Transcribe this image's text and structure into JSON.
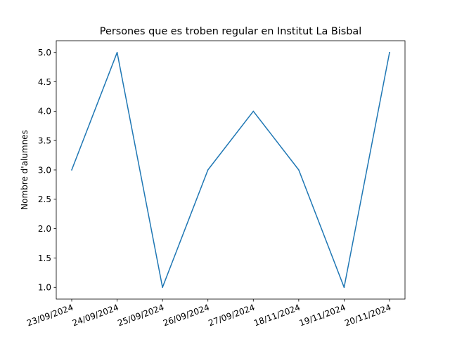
{
  "chart_data": {
    "type": "line",
    "title": "Persones que es troben regular en Institut La Bisbal",
    "xlabel": "",
    "ylabel": "Nombre d'alumnes",
    "categories": [
      "23/09/2024",
      "24/09/2024",
      "25/09/2024",
      "26/09/2024",
      "27/09/2024",
      "18/11/2024",
      "19/11/2024",
      "20/11/2024"
    ],
    "values": [
      3,
      5,
      1,
      3,
      4,
      3,
      1,
      5
    ],
    "yticks": [
      "1.0",
      "1.5",
      "2.0",
      "2.5",
      "3.0",
      "3.5",
      "4.0",
      "4.5",
      "5.0"
    ],
    "ylim": [
      0.8,
      5.2
    ],
    "grid": false,
    "legend": "none",
    "line_color": "#1f77b4",
    "axis_color": "#000000",
    "xtick_rotation_deg": 20
  }
}
